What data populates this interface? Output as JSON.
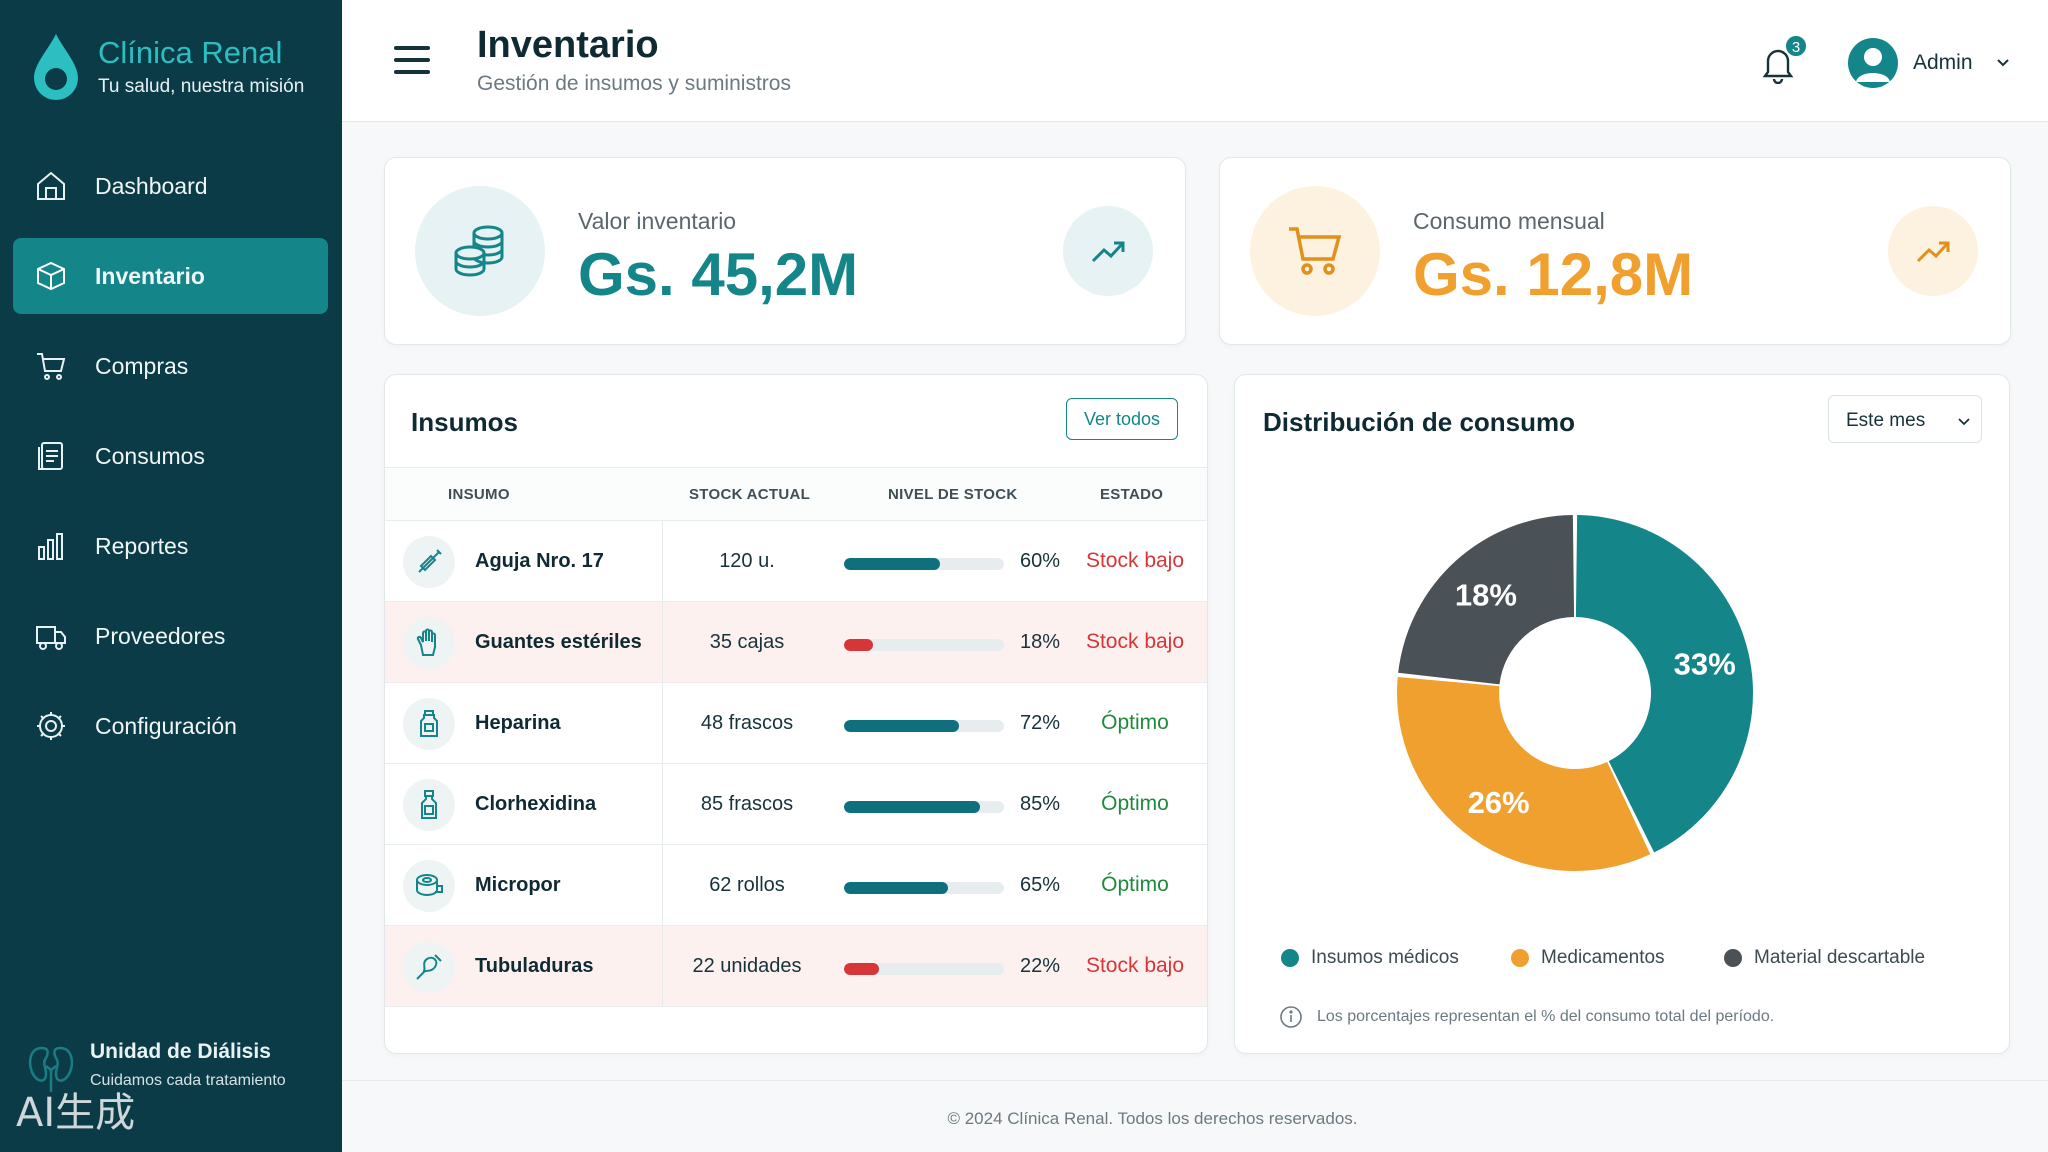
{
  "brand": {
    "name": "Clínica Renal",
    "tagline": "Tu salud, nuestra misión"
  },
  "nav": [
    {
      "label": "Dashboard",
      "icon": "home-icon",
      "active": false
    },
    {
      "label": "Inventario",
      "icon": "box-icon",
      "active": true
    },
    {
      "label": "Compras",
      "icon": "cart-icon",
      "active": false
    },
    {
      "label": "Consumos",
      "icon": "document-icon",
      "active": false
    },
    {
      "label": "Reportes",
      "icon": "bar-chart-icon",
      "active": false
    },
    {
      "label": "Proveedores",
      "icon": "truck-icon",
      "active": false
    },
    {
      "label": "Configuración",
      "icon": "gear-icon",
      "active": false
    }
  ],
  "unit": {
    "title": "Unidad de Diálisis",
    "subtitle": "Cuidamos cada tratamiento"
  },
  "watermark": "AI生成",
  "header": {
    "title": "Inventario",
    "subtitle": "Gestión de insumos y suministros",
    "notifications": "3",
    "user": "Admin"
  },
  "stats": {
    "inventory": {
      "label": "Valor inventario",
      "value": "Gs. 45,2M",
      "icon": "coins-icon",
      "trend_icon": "trend-up-icon"
    },
    "consumption": {
      "label": "Consumo mensual",
      "value": "Gs. 12,8M",
      "icon": "cart-icon",
      "trend_icon": "trend-up-icon"
    }
  },
  "supplies": {
    "title": "Insumos",
    "view_all": "Ver todos",
    "columns": [
      "INSUMO",
      "STOCK ACTUAL",
      "NIVEL DE STOCK",
      "ESTADO"
    ],
    "rows": [
      {
        "name": "Aguja Nro. 17",
        "stock": "120 u.",
        "level": 60,
        "level_label": "60%",
        "state": "Stock bajo",
        "low": false,
        "icon": "needle-icon"
      },
      {
        "name": "Guantes estériles",
        "stock": "35 cajas",
        "level": 18,
        "level_label": "18%",
        "state": "Stock bajo",
        "low": true,
        "icon": "glove-icon"
      },
      {
        "name": "Heparina",
        "stock": "48 frascos",
        "level": 72,
        "level_label": "72%",
        "state": "Óptimo",
        "low": false,
        "icon": "vial-icon"
      },
      {
        "name": "Clorhexidina",
        "stock": "85 frascos",
        "level": 85,
        "level_label": "85%",
        "state": "Óptimo",
        "low": false,
        "icon": "bottle-icon"
      },
      {
        "name": "Micropor",
        "stock": "62 rollos",
        "level": 65,
        "level_label": "65%",
        "state": "Óptimo",
        "low": false,
        "icon": "tape-icon"
      },
      {
        "name": "Tubuladuras",
        "stock": "22 unidades",
        "level": 22,
        "level_label": "22%",
        "state": "Stock bajo",
        "low": true,
        "icon": "tubing-icon"
      }
    ]
  },
  "distribution": {
    "title": "Distribución de consumo",
    "period": "Este mes",
    "note": "Los porcentajes representan el % del consumo total del período."
  },
  "chart_data": {
    "type": "pie",
    "title": "Distribución de consumo",
    "categories": [
      "Insumos médicos",
      "Medicamentos",
      "Material descartable"
    ],
    "values": [
      33,
      26,
      18
    ],
    "labels": [
      "33%",
      "26%",
      "18%"
    ],
    "colors": [
      "#14868a",
      "#f0a02e",
      "#4a5257"
    ],
    "donut": true,
    "legend_position": "bottom"
  },
  "colors": {
    "teal": "#14868a",
    "orange": "#f0a02e",
    "red": "#d63638",
    "green": "#1f8a3c",
    "dark": "#0b3b47"
  },
  "footer": "© 2024 Clínica Renal. Todos los derechos reservados."
}
